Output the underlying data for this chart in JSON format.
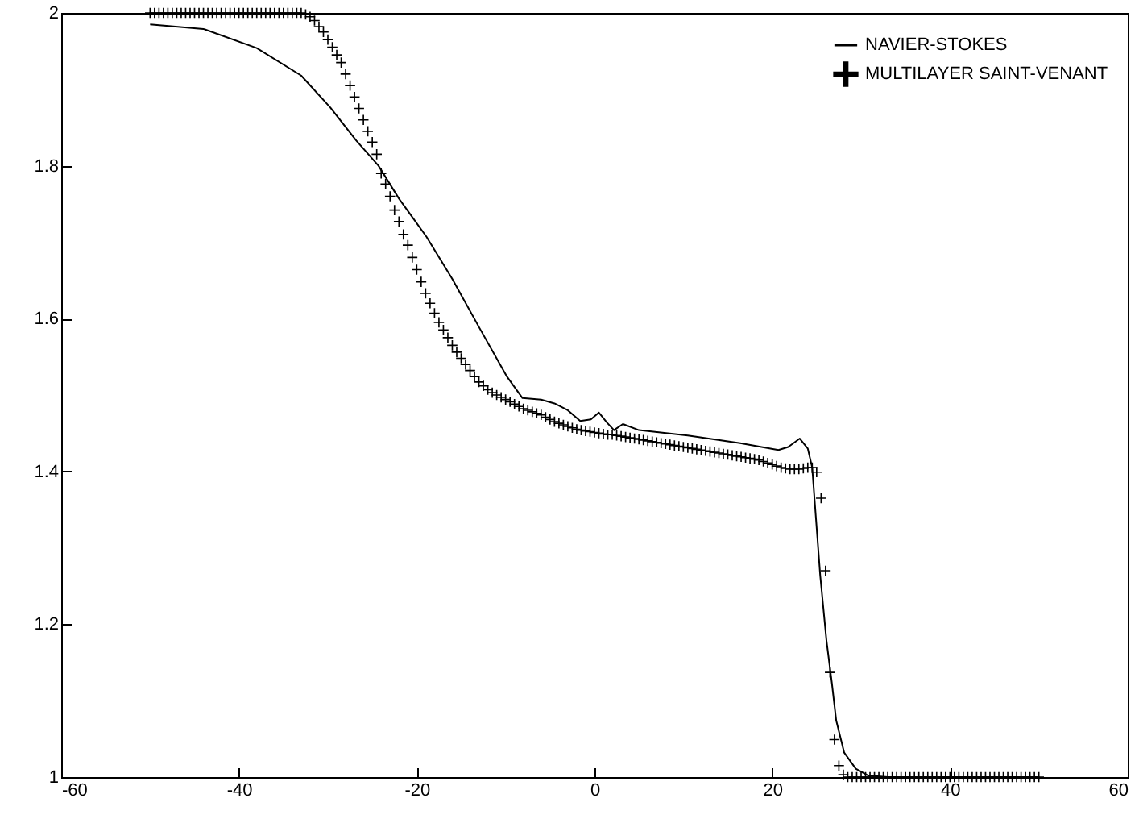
{
  "chart_data": {
    "type": "line",
    "xlim": [
      -60,
      60
    ],
    "xticks": [
      -60,
      -40,
      -20,
      0,
      20,
      40,
      60
    ],
    "ylim": [
      1,
      2
    ],
    "yticks": [
      {
        "value": 1,
        "label": "1"
      },
      1.2,
      1.4,
      1.6,
      1.8,
      {
        "value": 2,
        "label": "2"
      }
    ],
    "grid": false,
    "legend": "top right",
    "series": [
      {
        "name": "NAVIER-STOKES",
        "color": "#000000",
        "type": "line",
        "marker": "none",
        "line_style": "solid",
        "x": [
          -50,
          -44,
          -38,
          -33,
          -29.7,
          -26.8,
          -24.3,
          -22,
          -18.9,
          -16,
          -13,
          -9.9,
          -8.1,
          -6,
          -4.5,
          -3,
          -1.6,
          -0.4,
          0.5,
          1.4,
          2.2,
          3.2,
          5,
          10.5,
          16.4,
          20.7,
          21.8,
          23.1,
          24,
          24.5,
          24.9,
          25.4,
          26.1,
          26.7,
          27.2,
          28.1,
          29.4,
          30.8,
          33,
          40,
          50
        ],
        "values": [
          1.985,
          1.979,
          1.954,
          1.918,
          1.876,
          1.833,
          1.8,
          1.757,
          1.707,
          1.652,
          1.589,
          1.525,
          1.496,
          1.494,
          1.489,
          1.48,
          1.466,
          1.468,
          1.477,
          1.464,
          1.454,
          1.462,
          1.454,
          1.447,
          1.437,
          1.428,
          1.432,
          1.443,
          1.43,
          1.405,
          1.342,
          1.264,
          1.179,
          1.124,
          1.074,
          1.032,
          1.011,
          1.002,
          1,
          1,
          1
        ]
      },
      {
        "name": "MULTILAYER SAINT-VENANT",
        "color": "#000000",
        "type": "scatter",
        "marker": "cross",
        "x": [
          -50,
          -49.5,
          -49,
          -48.5,
          -48,
          -47.5,
          -47,
          -46.5,
          -46,
          -45.5,
          -45,
          -44.5,
          -44,
          -43.5,
          -43,
          -42.5,
          -42,
          -41.5,
          -41,
          -40.5,
          -40,
          -39.5,
          -39,
          -38.5,
          -38,
          -37.5,
          -37,
          -36.5,
          -36,
          -35.5,
          -35,
          -34.5,
          -34,
          -33.5,
          -33,
          -32.5,
          -32,
          -31.5,
          -31,
          -30.5,
          -30,
          -29.5,
          -29,
          -28.5,
          -28,
          -27.5,
          -27,
          -26.5,
          -26,
          -25.5,
          -25,
          -24.5,
          -24,
          -23.5,
          -23,
          -22.5,
          -22,
          -21.5,
          -21,
          -20.5,
          -20,
          -19.5,
          -19,
          -18.5,
          -18,
          -17.5,
          -17,
          -16.5,
          -16,
          -15.5,
          -15,
          -14.5,
          -14,
          -13.5,
          -13,
          -12.5,
          -12,
          -11.5,
          -11,
          -10.5,
          -10,
          -9.5,
          -9,
          -8.5,
          -8,
          -7.5,
          -7,
          -6.5,
          -6,
          -5.5,
          -5,
          -4.5,
          -4,
          -3.5,
          -3,
          -2.5,
          -2,
          -1.5,
          -1,
          -0.5,
          0,
          0.5,
          1,
          1.5,
          2,
          2.5,
          3,
          3.5,
          4,
          4.5,
          5,
          5.5,
          6,
          6.5,
          7,
          7.5,
          8,
          8.5,
          9,
          9.5,
          10,
          10.5,
          11,
          11.5,
          12,
          12.5,
          13,
          13.5,
          14,
          14.5,
          15,
          15.5,
          16,
          16.5,
          17,
          17.5,
          18,
          18.5,
          19,
          19.5,
          20,
          20.5,
          21,
          21.5,
          22,
          22.5,
          23,
          23.5,
          24,
          24.5,
          25,
          25.5,
          26,
          26.5,
          27,
          27.5,
          28,
          28.5,
          29,
          29.5,
          30,
          30.5,
          31,
          31.5,
          32,
          32.5,
          33,
          33.5,
          34,
          34.5,
          35,
          35.5,
          36,
          36.5,
          37,
          37.5,
          38,
          38.5,
          39,
          39.5,
          40,
          40.5,
          41,
          41.5,
          42,
          42.5,
          43,
          43.5,
          44,
          44.5,
          45,
          45.5,
          46,
          46.5,
          47,
          47.5,
          48,
          48.5,
          49,
          49.5,
          50
        ],
        "values": [
          2,
          2,
          2,
          2,
          2,
          2,
          2,
          2,
          2,
          2,
          2,
          2,
          2,
          2,
          2,
          2,
          2,
          2,
          2,
          2,
          2,
          2,
          2,
          2,
          2,
          2,
          2,
          2,
          2,
          2,
          2,
          2,
          2,
          2,
          2,
          1.998,
          1.995,
          1.99,
          1.982,
          1.975,
          1.965,
          1.955,
          1.945,
          1.935,
          1.92,
          1.905,
          1.89,
          1.875,
          1.86,
          1.845,
          1.831,
          1.815,
          1.79,
          1.776,
          1.76,
          1.742,
          1.727,
          1.71,
          1.696,
          1.68,
          1.664,
          1.648,
          1.633,
          1.62,
          1.607,
          1.595,
          1.585,
          1.575,
          1.565,
          1.556,
          1.548,
          1.54,
          1.532,
          1.524,
          1.517,
          1.512,
          1.507,
          1.503,
          1.5,
          1.497,
          1.494,
          1.491,
          1.488,
          1.485,
          1.482,
          1.48,
          1.478,
          1.476,
          1.474,
          1.471,
          1.468,
          1.465,
          1.463,
          1.461,
          1.459,
          1.457,
          1.455,
          1.454,
          1.453,
          1.452,
          1.451,
          1.45,
          1.449,
          1.448,
          1.448,
          1.447,
          1.446,
          1.445,
          1.444,
          1.443,
          1.442,
          1.441,
          1.44,
          1.439,
          1.438,
          1.437,
          1.436,
          1.435,
          1.434,
          1.433,
          1.432,
          1.431,
          1.43,
          1.429,
          1.428,
          1.427,
          1.426,
          1.425,
          1.424,
          1.423,
          1.422,
          1.421,
          1.42,
          1.419,
          1.418,
          1.417,
          1.416,
          1.415,
          1.413,
          1.411,
          1.409,
          1.407,
          1.405,
          1.404,
          1.403,
          1.403,
          1.403,
          1.404,
          1.405,
          1.405,
          1.399,
          1.365,
          1.27,
          1.137,
          1.049,
          1.015,
          1.003,
          1,
          1,
          1,
          1,
          1,
          1,
          1,
          1,
          1,
          1,
          1,
          1,
          1,
          1,
          1,
          1,
          1,
          1,
          1,
          1,
          1,
          1,
          1,
          1,
          1,
          1,
          1,
          1,
          1,
          1,
          1,
          1,
          1,
          1,
          1,
          1,
          1,
          1,
          1,
          1,
          1,
          1,
          1,
          1
        ]
      }
    ]
  }
}
